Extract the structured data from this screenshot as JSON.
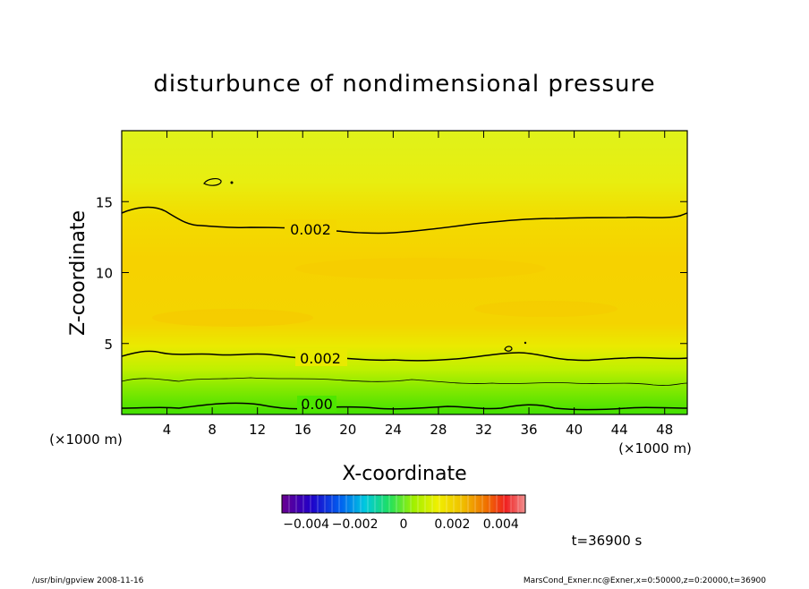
{
  "footer": {
    "left": "/usr/bin/gpview  2008-11-16",
    "right": "MarsCond_Exner.nc@Exner,x=0:50000,z=0:20000,t=36900"
  },
  "time_label": "t=36900 s",
  "colors": {
    "field_green": "#4ee600",
    "field_lightgreen": "#a8f000",
    "field_yellow": "#e6f000",
    "field_orange_yellow": "#f5d400",
    "field_pale": "#d8f020",
    "contour": "#000000"
  },
  "chart_data": {
    "type": "heatmap",
    "title": "disturbunce of nondimensional pressure",
    "xlabel": "X-coordinate",
    "ylabel": "Z-coordinate",
    "x_unit_label": "(×1000 m)",
    "y_unit_label": "(×1000 m)",
    "xlim": [
      0,
      50
    ],
    "ylim": [
      0,
      20
    ],
    "x_ticks": [
      4,
      8,
      12,
      16,
      20,
      24,
      28,
      32,
      36,
      40,
      44,
      48
    ],
    "y_ticks": [
      5,
      10,
      15
    ],
    "contour_labels": [
      {
        "text": "0.002",
        "x": 16.5,
        "z": 13.0
      },
      {
        "text": "0.002",
        "x": 17.5,
        "z": 3.8
      },
      {
        "text": "0.00",
        "x": 17.5,
        "z": 0.5
      }
    ],
    "colorbar": {
      "tick_labels": [
        "−0.004",
        "−0.002",
        "0",
        "0.002",
        "0.004"
      ],
      "range": [
        -0.005,
        0.005
      ]
    },
    "field_layers": [
      {
        "z_from": 0,
        "z_to": 1.5,
        "color": "#4ee600"
      },
      {
        "z_from": 1.5,
        "z_to": 3.0,
        "color": "#a8f000"
      },
      {
        "z_from": 3.0,
        "z_to": 4.0,
        "color": "#e6f000"
      },
      {
        "z_from": 4.0,
        "z_to": 13.5,
        "color": "#f5d400"
      },
      {
        "z_from": 13.5,
        "z_to": 20,
        "color": "#e6f000"
      }
    ]
  }
}
